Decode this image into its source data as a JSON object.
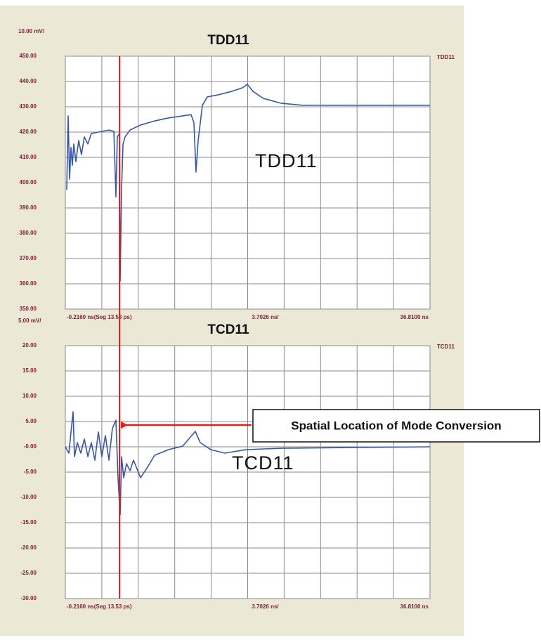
{
  "chart_data": [
    {
      "type": "line",
      "title": "TDD11",
      "scale_label": "10.00 mV/",
      "channel_label": "TDD11",
      "inner_label": "TDD11",
      "x_start_label": "-0.2160 ns(Seg 13.53 ps)",
      "x_div_label": "3.7026 ns/",
      "x_end_label": "36.8100 ns",
      "xlim": [
        -0.216,
        36.81
      ],
      "cursor_x": 5.28,
      "ylim": [
        350,
        450
      ],
      "yticks": [
        {
          "value": 450,
          "label": "450.00"
        },
        {
          "value": 440,
          "label": "440.00"
        },
        {
          "value": 430,
          "label": "430.00"
        },
        {
          "value": 420,
          "label": "420.00"
        },
        {
          "value": 410,
          "label": "410.00"
        },
        {
          "value": 400,
          "label": "400.00"
        },
        {
          "value": 390,
          "label": "390.00"
        },
        {
          "value": 380,
          "label": "380.00"
        },
        {
          "value": 370,
          "label": "370.00"
        },
        {
          "value": 360,
          "label": "360.00"
        },
        {
          "value": 350,
          "label": "350.00"
        }
      ],
      "xticks": [
        -0.216,
        3.4866,
        7.1892,
        10.8918,
        14.5944,
        18.297,
        21.9996,
        25.7022,
        29.4048,
        33.1074,
        36.81
      ],
      "grid": true,
      "color": "#3a56a8",
      "cursor_color": "#e0201c",
      "x": [
        -0.073,
        0.069,
        0.212,
        0.355,
        0.497,
        0.64,
        0.854,
        1.14,
        1.42,
        1.71,
        2.07,
        2.42,
        3.14,
        4.21,
        4.71,
        4.92,
        5.06,
        5.28,
        5.35,
        5.49,
        5.64,
        5.85,
        6.35,
        7.42,
        8.85,
        10.27,
        11.7,
        12.55,
        12.84,
        13.05,
        13.27,
        13.7,
        14.2,
        15.27,
        16.69,
        17.76,
        18.26,
        18.83,
        19.9,
        21.69,
        23.83,
        36.81
      ],
      "values": [
        397.2,
        426.4,
        401.4,
        413.9,
        406.9,
        415.3,
        408.3,
        416.7,
        411.1,
        418.1,
        415.3,
        419.4,
        420,
        420.8,
        420.3,
        394.4,
        418.1,
        419.4,
        361.1,
        397.2,
        415.3,
        418.1,
        420.8,
        422.8,
        424.4,
        425.6,
        426.4,
        426.9,
        423.6,
        404.2,
        416.7,
        430.6,
        433.9,
        434.7,
        436.1,
        437.5,
        438.9,
        436.1,
        433.3,
        431.4,
        430.6,
        430.6
      ]
    },
    {
      "type": "line",
      "title": "TCD11",
      "scale_label": "5.00 mV/",
      "channel_label": "TCD11",
      "inner_label": "TCD11",
      "x_start_label": "-0.2160 ns(Seg 13.53 ps)",
      "x_div_label": "3.7026 ns/",
      "x_end_label": "36.8100 ns",
      "xlim": [
        -0.216,
        36.81
      ],
      "ylim": [
        -30,
        20
      ],
      "yticks": [
        {
          "value": 20,
          "label": "20.00"
        },
        {
          "value": 15,
          "label": "15.00"
        },
        {
          "value": 10,
          "label": "10.00"
        },
        {
          "value": 5,
          "label": "5.00"
        },
        {
          "value": 0,
          "label": "-0.00"
        },
        {
          "value": -5,
          "label": "-5.00"
        },
        {
          "value": -10,
          "label": "-10.00"
        },
        {
          "value": -15,
          "label": "-15.00"
        },
        {
          "value": -20,
          "label": "-20.00"
        },
        {
          "value": -25,
          "label": "-25.00"
        },
        {
          "value": -30,
          "label": "-30.00"
        }
      ],
      "xticks": [
        -0.216,
        3.4866,
        7.1892,
        10.8918,
        14.5944,
        18.297,
        21.9996,
        25.7022,
        29.4048,
        33.1074,
        36.81
      ],
      "grid": true,
      "color": "#3a56a8",
      "annotation": "Spatial Location of Mode Conversion",
      "annotation_color": "#e0201c",
      "x": [
        -0.216,
        0.14,
        0.569,
        0.711,
        1.0,
        1.35,
        1.71,
        2.07,
        2.42,
        2.78,
        3.14,
        3.49,
        3.85,
        4.21,
        4.56,
        4.92,
        5.13,
        5.35,
        5.49,
        5.71,
        5.99,
        6.35,
        6.7,
        7.42,
        8.13,
        8.85,
        10.27,
        11.7,
        12.98,
        13.48,
        14.55,
        15.98,
        18.12,
        21.69,
        36.81
      ],
      "values": [
        0,
        -1.25,
        6.94,
        -1.94,
        0.83,
        -1.25,
        1.53,
        -1.94,
        0.83,
        -2.64,
        2.92,
        -1.94,
        2.22,
        -2.64,
        3.61,
        5.28,
        -6.11,
        -13.47,
        -1.94,
        -6.11,
        -3.33,
        -4.72,
        -2.64,
        -6.11,
        -4.03,
        -1.67,
        -0.56,
        0.14,
        3.06,
        0.83,
        -0.56,
        -1.25,
        -0.56,
        -0.28,
        0
      ]
    }
  ]
}
